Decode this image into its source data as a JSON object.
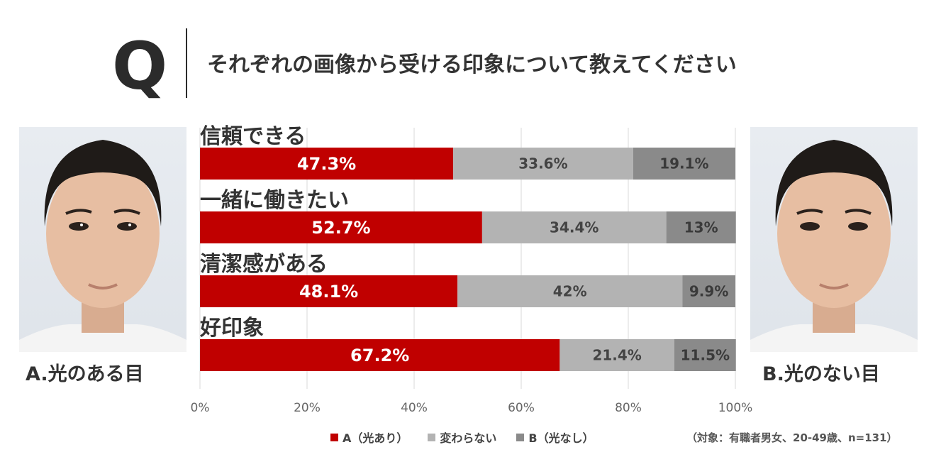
{
  "header": {
    "q_mark": "Q",
    "question": "それぞれの画像から受ける印象について教えてください"
  },
  "photos": {
    "left_caption": "A.光のある目",
    "right_caption": "B.光のない目"
  },
  "note": "（対象：有職者男女、20-49歳、n=131）",
  "colors": {
    "a": "#c00000",
    "same": "#b3b3b3",
    "b": "#8a8a8a"
  },
  "chart_data": {
    "type": "bar",
    "orientation": "horizontal",
    "stacked": true,
    "categories": [
      "信頼できる",
      "一緒に働きたい",
      "清潔感がある",
      "好印象"
    ],
    "series": [
      {
        "name": "A（光あり）",
        "values": [
          47.3,
          52.7,
          48.1,
          67.2
        ]
      },
      {
        "name": "変わらない",
        "values": [
          33.6,
          34.4,
          42,
          21.4
        ]
      },
      {
        "name": "B（光なし）",
        "values": [
          19.1,
          13,
          9.9,
          11.5
        ]
      }
    ],
    "data_labels": [
      [
        "47.3%",
        "52.7%",
        "48.1%",
        "67.2%"
      ],
      [
        "33.6%",
        "34.4%",
        "42%",
        "21.4%"
      ],
      [
        "19.1%",
        "13%",
        "9.9%",
        "11.5%"
      ]
    ],
    "x_ticks": [
      "0%",
      "20%",
      "40%",
      "60%",
      "80%",
      "100%"
    ],
    "xlim": [
      0,
      100
    ],
    "grid": true,
    "legend_position": "bottom"
  }
}
